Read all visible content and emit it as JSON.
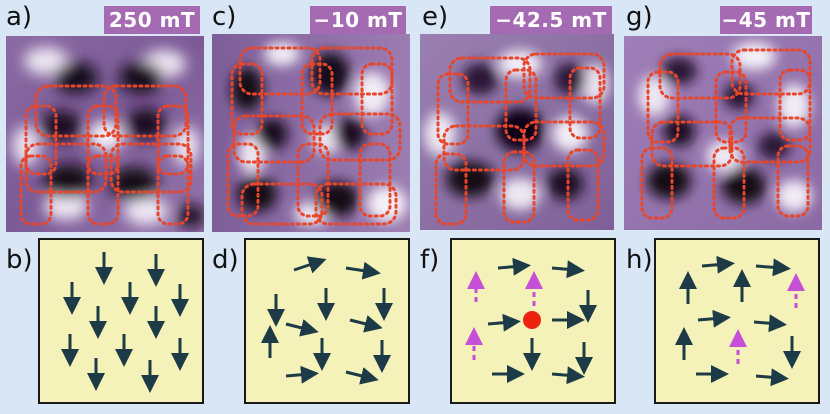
{
  "panels": [
    {
      "label": "a)",
      "field": "250 mT"
    },
    {
      "label": "b)"
    },
    {
      "label": "c)",
      "field": "−10 mT"
    },
    {
      "label": "d)"
    },
    {
      "label": "e)",
      "field": "−42.5 mT"
    },
    {
      "label": "f)"
    },
    {
      "label": "g)",
      "field": "−45 mT"
    },
    {
      "label": "h)"
    }
  ],
  "colors": {
    "background": "#d9e6f6",
    "badge": "#a46bb3",
    "loop_outline": "#e8462a",
    "arrow": "#1d3b46",
    "flipped_arrow": "#c64fd8",
    "monopole": "#ee2211",
    "box_fill": "#f5f2b9"
  }
}
